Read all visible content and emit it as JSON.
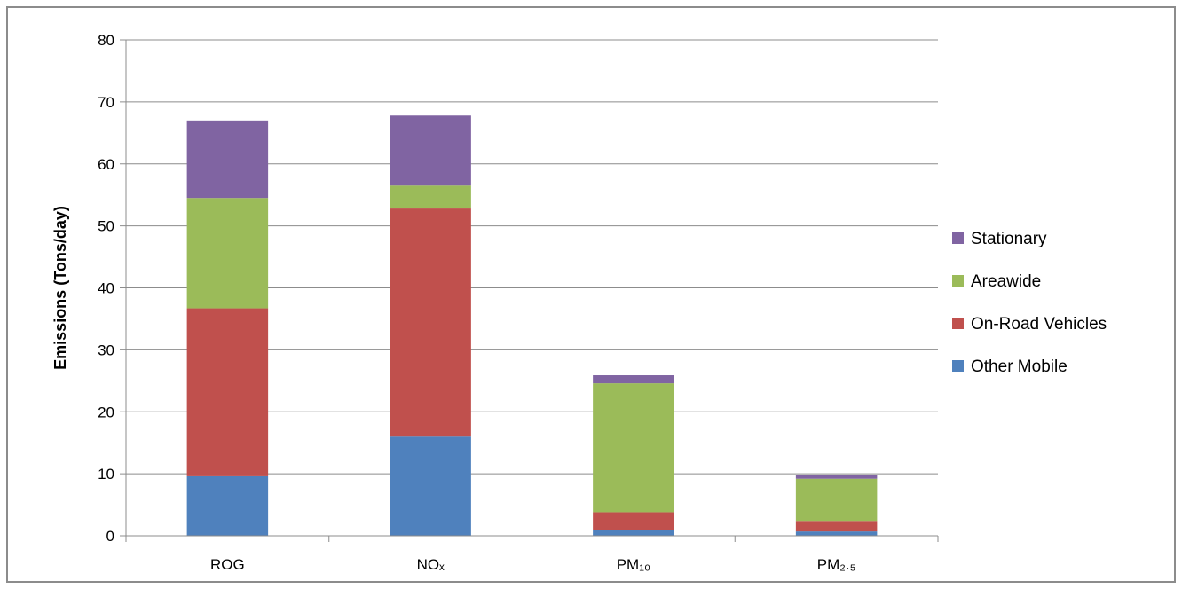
{
  "chart_data": {
    "type": "bar",
    "stacked": true,
    "title": "",
    "xlabel": "",
    "ylabel": "Emissions (Tons/day)",
    "ylim": [
      0,
      80
    ],
    "yticks": [
      0,
      10,
      20,
      30,
      40,
      50,
      60,
      70,
      80
    ],
    "grid": true,
    "legend_position": "right",
    "categories": [
      "ROG",
      "NOₓ",
      "PM₁₀",
      "PM₂.₅"
    ],
    "series": [
      {
        "name": "Other Mobile",
        "color": "#4F81BD",
        "values": [
          9.6,
          16.0,
          0.9,
          0.7
        ]
      },
      {
        "name": "On-Road Vehicles",
        "color": "#C0504D",
        "values": [
          27.1,
          36.8,
          2.9,
          1.7
        ]
      },
      {
        "name": "Areawide",
        "color": "#9BBB59",
        "values": [
          17.8,
          3.7,
          20.8,
          6.8
        ]
      },
      {
        "name": "Stationary",
        "color": "#8064A2",
        "values": [
          12.5,
          11.3,
          1.3,
          0.6
        ]
      }
    ]
  }
}
